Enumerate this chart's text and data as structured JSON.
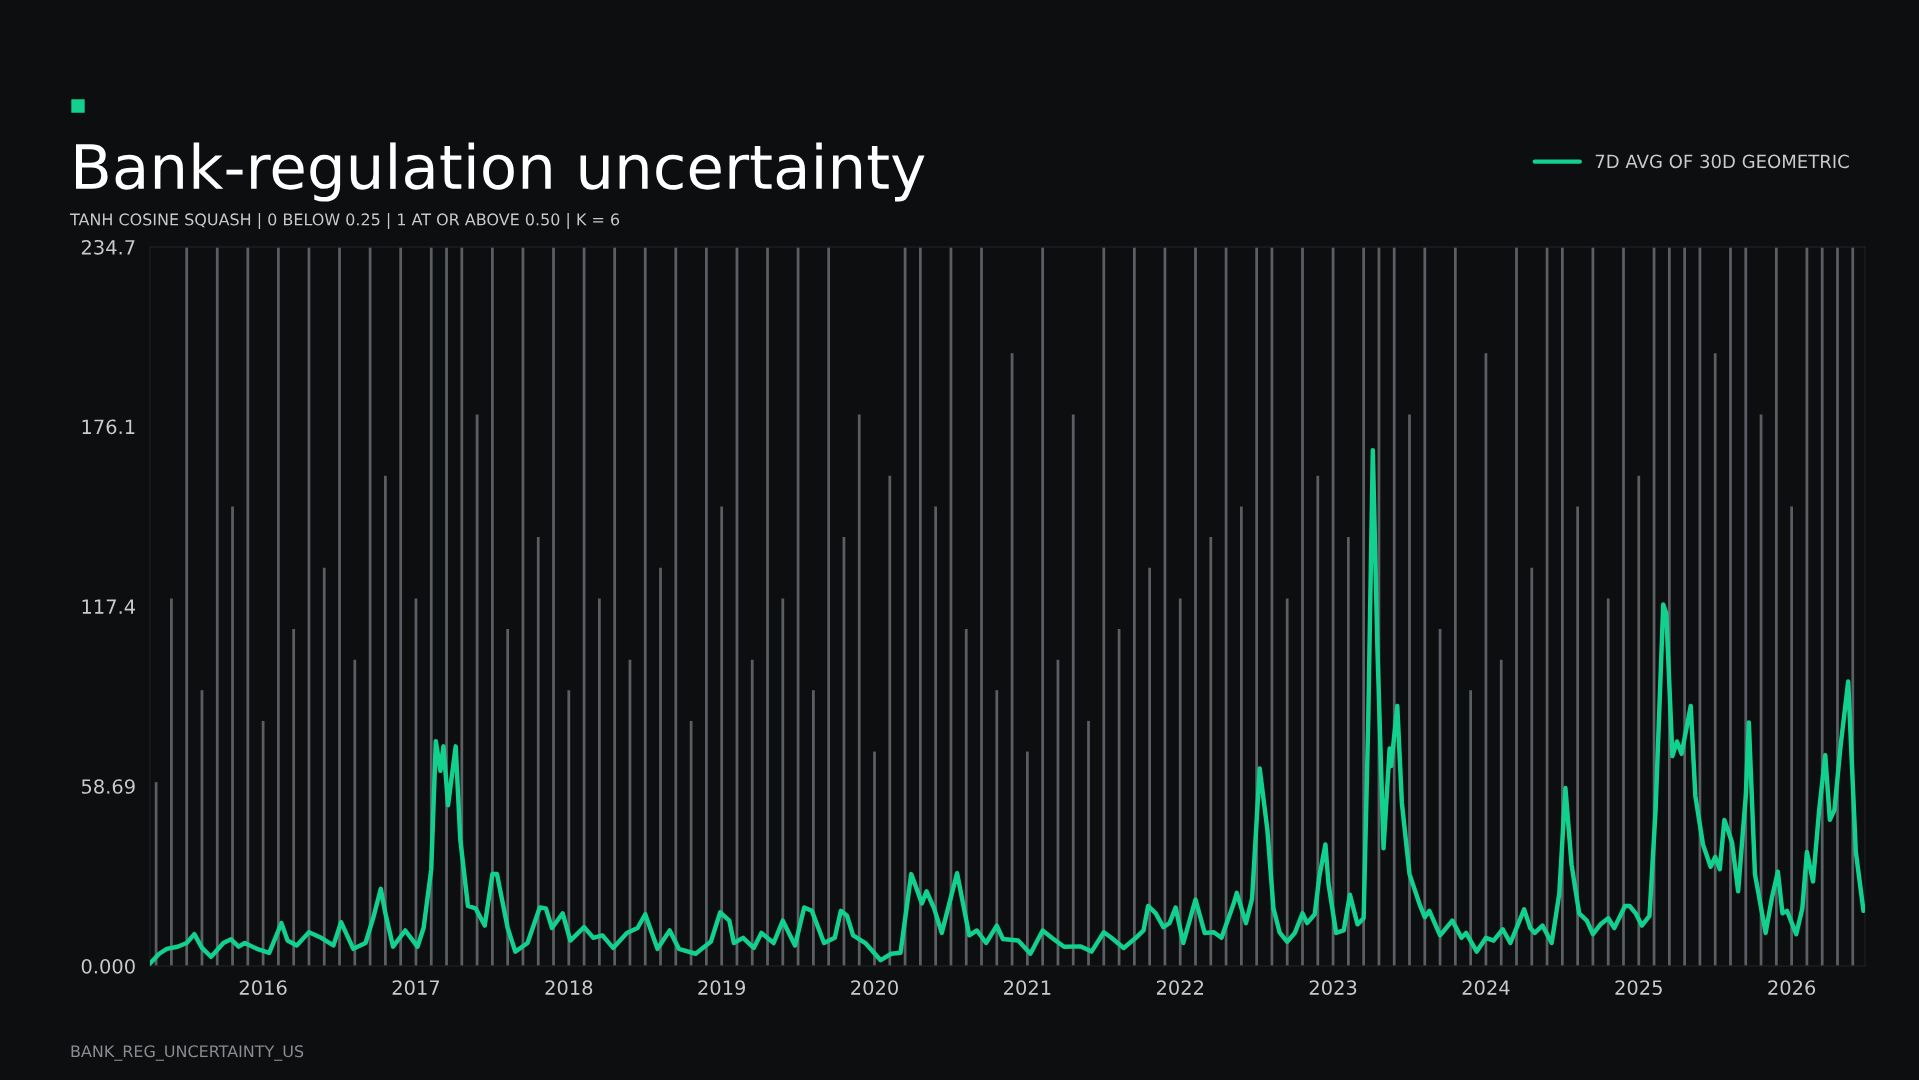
{
  "chart_data": {
    "type": "line",
    "title": "Bank-regulation uncertainty",
    "subtitle": "TANH COSINE SQUASH | 0 BELOW 0.25 | 1 AT OR ABOVE 0.50 | K = 6",
    "annotations": [
      "BANK_REG_UNCERTAINTY_US"
    ],
    "xlim": [
      2015.26,
      2026.48
    ],
    "xticks": [
      2016,
      2017,
      2018,
      2019,
      2020,
      2021,
      2022,
      2023,
      2024,
      2025,
      2026
    ],
    "ylim": [
      0,
      234.7
    ],
    "yticks": [
      {
        "value": 0,
        "label": "0.000"
      },
      58.69,
      117.4,
      176.1,
      234.7
    ],
    "grid": false,
    "legend": "top right",
    "series": [
      {
        "type": "bar",
        "color": "#5b5f64",
        "x": [
          2015.3,
          2015.4,
          2015.5,
          2015.6,
          2015.7,
          2015.8,
          2015.9,
          2016.0,
          2016.1,
          2016.2,
          2016.3,
          2016.4,
          2016.5,
          2016.6,
          2016.7,
          2016.8,
          2016.9,
          2017.0,
          2017.1,
          2017.2,
          2017.3,
          2017.4,
          2017.5,
          2017.6,
          2017.7,
          2017.8,
          2017.9,
          2018.0,
          2018.1,
          2018.2,
          2018.3,
          2018.4,
          2018.5,
          2018.6,
          2018.7,
          2018.8,
          2018.9,
          2019.0,
          2019.1,
          2019.2,
          2019.3,
          2019.4,
          2019.5,
          2019.6,
          2019.7,
          2019.8,
          2019.9,
          2020.0,
          2020.1,
          2020.2,
          2020.3,
          2020.4,
          2020.5,
          2020.6,
          2020.7,
          2020.8,
          2020.9,
          2021.0,
          2021.1,
          2021.2,
          2021.3,
          2021.4,
          2021.5,
          2021.6,
          2021.7,
          2021.8,
          2021.9,
          2022.0,
          2022.1,
          2022.2,
          2022.3,
          2022.4,
          2022.5,
          2022.6,
          2022.7,
          2022.8,
          2022.9,
          2023.0,
          2023.1,
          2023.2,
          2023.3,
          2023.4,
          2023.5,
          2023.6,
          2023.7,
          2023.8,
          2023.9,
          2024.0,
          2024.1,
          2024.2,
          2024.3,
          2024.4,
          2024.5,
          2024.6,
          2024.7,
          2024.8,
          2024.9,
          2025.0,
          2025.1,
          2025.2,
          2025.3,
          2025.4,
          2025.5,
          2025.6,
          2025.7,
          2025.8,
          2025.9,
          2026.0,
          2026.1,
          2026.2,
          2026.3,
          2026.4
        ],
        "values": [
          60,
          120,
          234.7,
          90,
          234.7,
          150,
          234.7,
          80,
          234.7,
          110,
          234.7,
          130,
          234.7,
          100,
          234.7,
          160,
          234.7,
          120,
          234.7,
          234.7,
          234.7,
          180,
          234.7,
          110,
          234.7,
          140,
          234.7,
          90,
          234.7,
          120,
          234.7,
          100,
          234.7,
          130,
          234.7,
          80,
          234.7,
          150,
          234.7,
          100,
          234.7,
          120,
          234.7,
          90,
          234.7,
          140,
          180,
          70,
          160,
          234.7,
          234.7,
          150,
          234.7,
          110,
          234.7,
          90,
          200,
          70,
          234.7,
          100,
          180,
          80,
          234.7,
          110,
          234.7,
          130,
          234.7,
          120,
          234.7,
          140,
          234.7,
          150,
          234.7,
          234.7,
          120,
          234.7,
          160,
          234.7,
          140,
          234.7,
          234.7,
          234.7,
          180,
          234.7,
          110,
          234.7,
          90,
          200,
          100,
          234.7,
          130,
          234.7,
          234.7,
          150,
          234.7,
          120,
          234.7,
          160,
          234.7,
          234.7,
          234.7,
          234.7,
          200,
          234.7,
          234.7,
          180,
          234.7,
          150,
          234.7,
          234.7,
          234.7,
          234.7
        ]
      },
      {
        "name": "7D AVG OF 30D GEOMETRIC",
        "color": "#12d18e",
        "x": [
          2015.26,
          2015.32,
          2015.37,
          2015.44,
          2015.5,
          2015.55,
          2015.6,
          2015.66,
          2015.74,
          2015.79,
          2015.84,
          2015.88,
          2015.96,
          2016.04,
          2016.12,
          2016.16,
          2016.22,
          2016.3,
          2016.38,
          2016.46,
          2016.51,
          2016.59,
          2016.67,
          2016.72,
          2016.77,
          2016.8,
          2016.85,
          2016.93,
          2017.01,
          2017.05,
          2017.1,
          2017.13,
          2017.16,
          2017.18,
          2017.21,
          2017.26,
          2017.29,
          2017.34,
          2017.39,
          2017.45,
          2017.5,
          2017.53,
          2017.6,
          2017.65,
          2017.73,
          2017.81,
          2017.85,
          2017.89,
          2017.96,
          2018.01,
          2018.1,
          2018.16,
          2018.22,
          2018.29,
          2018.38,
          2018.45,
          2018.5,
          2018.58,
          2018.66,
          2018.72,
          2018.83,
          2018.93,
          2018.99,
          2019.05,
          2019.08,
          2019.14,
          2019.21,
          2019.26,
          2019.34,
          2019.4,
          2019.48,
          2019.54,
          2019.59,
          2019.67,
          2019.74,
          2019.78,
          2019.82,
          2019.86,
          2019.94,
          2020.04,
          2020.11,
          2020.17,
          2020.24,
          2020.27,
          2020.31,
          2020.34,
          2020.39,
          2020.44,
          2020.54,
          2020.62,
          2020.67,
          2020.73,
          2020.8,
          2020.84,
          2020.94,
          2021.02,
          2021.1,
          2021.16,
          2021.24,
          2021.35,
          2021.42,
          2021.5,
          2021.55,
          2021.63,
          2021.71,
          2021.76,
          2021.79,
          2021.84,
          2021.89,
          2021.93,
          2021.97,
          2022.02,
          2022.1,
          2022.16,
          2022.22,
          2022.27,
          2022.35,
          2022.37,
          2022.43,
          2022.47,
          2022.52,
          2022.57,
          2022.61,
          2022.65,
          2022.7,
          2022.75,
          2022.8,
          2022.83,
          2022.88,
          2022.91,
          2022.95,
          2022.97,
          2023.02,
          2023.07,
          2023.11,
          2023.16,
          2023.2,
          2023.23,
          2023.26,
          2023.29,
          2023.33,
          2023.37,
          2023.38,
          2023.42,
          2023.45,
          2023.5,
          2023.57,
          2023.6,
          2023.63,
          2023.7,
          2023.78,
          2023.84,
          2023.87,
          2023.94,
          2024.0,
          2024.05,
          2024.11,
          2024.16,
          2024.25,
          2024.29,
          2024.32,
          2024.37,
          2024.43,
          2024.48,
          2024.52,
          2024.56,
          2024.61,
          2024.66,
          2024.7,
          2024.75,
          2024.8,
          2024.84,
          2024.91,
          2024.94,
          2024.98,
          2025.02,
          2025.07,
          2025.11,
          2025.16,
          2025.18,
          2025.22,
          2025.25,
          2025.28,
          2025.34,
          2025.37,
          2025.42,
          2025.47,
          2025.5,
          2025.53,
          2025.56,
          2025.61,
          2025.65,
          2025.7,
          2025.72,
          2025.76,
          2025.83,
          2025.87,
          2025.91,
          2025.94,
          2025.97,
          2026.03,
          2026.07,
          2026.1,
          2026.14,
          2026.18,
          2026.22,
          2026.25,
          2026.28,
          2026.32,
          2026.37,
          2026.42,
          2026.47
        ],
        "values": [
          0.8,
          4,
          5.6,
          6.3,
          7.5,
          10.4,
          5.9,
          3,
          7.5,
          8.7,
          6.3,
          7.5,
          5.6,
          4.3,
          14,
          8.3,
          6.7,
          11,
          9.2,
          6.7,
          14.3,
          5.6,
          7.5,
          15.6,
          25.2,
          17.2,
          6.3,
          11.6,
          6.3,
          12.4,
          31.6,
          73.4,
          63.7,
          71.7,
          52.5,
          71.7,
          41.3,
          19.6,
          18.8,
          13.2,
          30,
          30,
          12.4,
          4.7,
          7.5,
          19.1,
          18.8,
          12.4,
          17.2,
          8.3,
          12.7,
          9.2,
          10,
          5.9,
          10.8,
          12.4,
          16.9,
          5.6,
          11.6,
          5.6,
          4,
          8,
          17.5,
          14.8,
          7.5,
          9.2,
          5.9,
          10.8,
          7.5,
          14.8,
          6.7,
          19.1,
          18,
          7.5,
          9.2,
          18,
          16.4,
          10,
          7.5,
          1.9,
          4,
          4.3,
          30,
          26,
          20.4,
          24.4,
          18.8,
          10.8,
          30.3,
          10,
          11.6,
          7.5,
          13.2,
          8.8,
          8.3,
          4,
          11.6,
          9.2,
          6.3,
          6.4,
          4.7,
          11,
          9.2,
          5.9,
          9.2,
          11.6,
          19.6,
          17.2,
          12.7,
          14,
          19.1,
          7.5,
          21.7,
          10.8,
          11,
          9.2,
          20.4,
          23.9,
          14,
          22,
          64.5,
          44.5,
          18.8,
          11,
          7.9,
          10.8,
          17.2,
          14,
          16.9,
          29.2,
          39.7,
          26.8,
          10.8,
          11.6,
          23.3,
          13.6,
          15.6,
          79.8,
          168.4,
          103.9,
          38.4,
          71,
          65.3,
          84.9,
          53.3,
          30,
          19.6,
          15.9,
          18,
          10,
          14.8,
          9.2,
          10.8,
          4.7,
          9.2,
          8.3,
          12,
          7.5,
          18.5,
          12.4,
          10.8,
          13.2,
          7.5,
          23.6,
          58.1,
          33.2,
          17.2,
          14.8,
          10.4,
          13.6,
          15.6,
          12.4,
          19.6,
          19.6,
          17.2,
          13.2,
          16.4,
          50.9,
          118,
          115.1,
          68.5,
          73.3,
          69.3,
          84.9,
          55.5,
          39.7,
          32.4,
          35.6,
          31.6,
          47.7,
          40.4,
          24.4,
          55.5,
          79.5,
          30,
          10.8,
          22,
          30.8,
          17.2,
          18,
          10.4,
          18.8,
          37.2,
          27.6,
          50.9,
          68.8,
          47.7,
          50.9,
          71.7,
          92.9,
          37.2,
          18
        ]
      }
    ]
  }
}
